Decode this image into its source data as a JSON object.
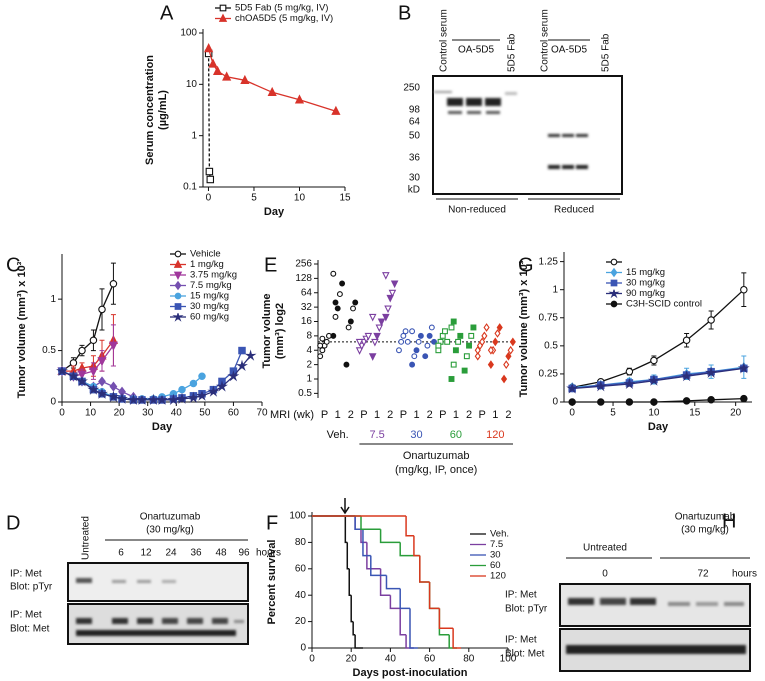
{
  "panel_labels": [
    "A",
    "B",
    "C",
    "D",
    "E",
    "F",
    "G",
    "H"
  ],
  "chart_data": [
    {
      "type": "line",
      "log_y": true,
      "x_label": "Day",
      "y_label": [
        "Serum concentration",
        "(µg/mL)"
      ],
      "xlim": [
        -0.6,
        15
      ],
      "xticks": [
        0,
        5,
        10,
        15
      ],
      "ylim": [
        0.1,
        100
      ],
      "yticks": [
        0.1,
        1,
        10,
        100
      ],
      "series": [
        {
          "name": "5D5 Fab (5 mg/kg, IV)",
          "color": "#111111",
          "marker": "square",
          "open": true,
          "dashed": true,
          "x": [
            0.02,
            0.1,
            0.2
          ],
          "values": [
            40,
            0.2,
            0.14
          ]
        },
        {
          "name": "chOA5D5 (5 mg/kg, IV)",
          "color": "#d8332a",
          "marker": "triangle",
          "open": false,
          "dashed": false,
          "x": [
            0.02,
            0.5,
            1,
            2,
            4,
            7,
            10,
            14
          ],
          "values": [
            50,
            25,
            18,
            14,
            12,
            7,
            5,
            3
          ]
        }
      ]
    },
    {
      "type": "line",
      "x_label": "Day",
      "y_label": [
        "Tumor volume (mm³) x 10³"
      ],
      "xlim": [
        0,
        70
      ],
      "xticks": [
        0,
        10,
        20,
        30,
        40,
        50,
        60,
        70
      ],
      "ylim": [
        0,
        1.4
      ],
      "yticks": [
        0,
        0.5,
        1
      ],
      "series": [
        {
          "name": "Vehicle",
          "color": "#111111",
          "marker": "circle",
          "open": true,
          "x": [
            0,
            4,
            7,
            11,
            14,
            18
          ],
          "values": [
            0.3,
            0.38,
            0.5,
            0.6,
            0.9,
            1.15
          ],
          "errors": [
            0.02,
            0.05,
            0.05,
            0.1,
            0.2,
            0.2
          ]
        },
        {
          "name": "1 mg/kg",
          "color": "#d8332a",
          "marker": "triangle",
          "open": false,
          "x": [
            0,
            4,
            7,
            11,
            14,
            18
          ],
          "values": [
            0.3,
            0.3,
            0.33,
            0.35,
            0.45,
            0.6
          ],
          "errors": [
            0.02,
            0.05,
            0.05,
            0.1,
            0.15,
            0.25
          ]
        },
        {
          "name": "3.75 mg/kg",
          "color": "#a0379c",
          "marker": "triangle-down",
          "open": false,
          "x": [
            0,
            4,
            7,
            11,
            14,
            18
          ],
          "values": [
            0.3,
            0.25,
            0.27,
            0.3,
            0.4,
            0.55
          ],
          "errors": [
            0.02,
            0.03,
            0.05,
            0.08,
            0.1,
            0.2
          ]
        },
        {
          "name": "7.5 mg/kg",
          "color": "#7550b0",
          "marker": "diamond",
          "open": false,
          "x": [
            0,
            4,
            7,
            11,
            14,
            18,
            21,
            25
          ],
          "values": [
            0.3,
            0.25,
            0.2,
            0.15,
            0.2,
            0.15,
            0.1,
            0.05
          ]
        },
        {
          "name": "15 mg/kg",
          "color": "#4aa3df",
          "marker": "circle",
          "open": false,
          "x": [
            0,
            4,
            7,
            11,
            14,
            18,
            21,
            25,
            28,
            32,
            35,
            39,
            42,
            46,
            49
          ],
          "values": [
            0.3,
            0.25,
            0.2,
            0.15,
            0.1,
            0.05,
            0.03,
            0.03,
            0.03,
            0.03,
            0.05,
            0.08,
            0.12,
            0.18,
            0.25
          ]
        },
        {
          "name": "30 mg/kg",
          "color": "#3a55b4",
          "marker": "square",
          "open": false,
          "x": [
            0,
            4,
            7,
            11,
            14,
            18,
            21,
            25,
            28,
            32,
            35,
            39,
            42,
            46,
            49,
            53,
            56,
            60,
            63
          ],
          "values": [
            0.3,
            0.25,
            0.2,
            0.12,
            0.08,
            0.05,
            0.03,
            0.02,
            0.02,
            0.02,
            0.02,
            0.03,
            0.04,
            0.06,
            0.08,
            0.12,
            0.2,
            0.3,
            0.5
          ]
        },
        {
          "name": "60 mg/kg",
          "color": "#2b2f7a",
          "marker": "star",
          "open": false,
          "x": [
            0,
            4,
            7,
            11,
            14,
            18,
            21,
            25,
            28,
            32,
            35,
            39,
            42,
            46,
            49,
            53,
            56,
            60,
            63,
            66
          ],
          "values": [
            0.3,
            0.25,
            0.2,
            0.12,
            0.08,
            0.05,
            0.03,
            0.02,
            0.02,
            0.02,
            0.02,
            0.02,
            0.03,
            0.04,
            0.06,
            0.1,
            0.15,
            0.25,
            0.35,
            0.45
          ]
        }
      ]
    },
    {
      "type": "strip",
      "log_y": true,
      "x_label": "MRI (wk)",
      "y_label": [
        "Tumor volume",
        "(mm³) log2"
      ],
      "group_title": "Onartuzumab",
      "group_subtitle": "(mg/kg, IP, once)",
      "categories": [
        "P",
        "1",
        "2",
        "P",
        "1",
        "2",
        "P",
        "1",
        "2",
        "P",
        "1",
        "2",
        "P",
        "1",
        "2"
      ],
      "ylim": [
        0.4,
        256
      ],
      "yticks": [
        0.5,
        1,
        2,
        4,
        8,
        16,
        32,
        64,
        128,
        256
      ],
      "reference_line": 6,
      "series": [
        {
          "name": "Veh.",
          "color": "#111111",
          "marker": "circle",
          "values": [
            [
              3,
              4,
              5,
              6,
              8,
              5,
              7
            ],
            [
              8,
              20,
              30,
              60,
              100,
              160,
              40
            ],
            [
              2,
              12,
              16,
              30,
              40
            ]
          ]
        },
        {
          "name": "7.5",
          "color": "#7b3fa0",
          "marker": "triangle-down",
          "values": [
            [
              4,
              5,
              6,
              7,
              8,
              6
            ],
            [
              3,
              6,
              8,
              12,
              16,
              20
            ],
            [
              20,
              30,
              50,
              64,
              100,
              150
            ]
          ]
        },
        {
          "name": "30",
          "color": "#3a55b4",
          "marker": "circle",
          "values": [
            [
              4,
              6,
              8,
              10,
              6
            ],
            [
              2,
              3,
              4,
              6,
              8,
              10
            ],
            [
              3,
              5,
              8,
              12,
              6
            ]
          ]
        },
        {
          "name": "60",
          "color": "#2a9d3a",
          "marker": "square",
          "values": [
            [
              4,
              6,
              8,
              10,
              6,
              5
            ],
            [
              1,
              2,
              4,
              6,
              8,
              12,
              16
            ],
            [
              1.5,
              3,
              5,
              8,
              12
            ]
          ]
        },
        {
          "name": "120",
          "color": "#d9381e",
          "marker": "diamond",
          "values": [
            [
              3,
              5,
              6,
              8,
              12,
              4
            ],
            [
              2,
              4,
              6,
              9,
              12,
              4
            ],
            [
              1,
              2,
              3,
              4,
              6
            ]
          ]
        }
      ]
    },
    {
      "type": "step",
      "x_label": "Days post-inoculation",
      "y_label": [
        "Percent survival"
      ],
      "xlim": [
        0,
        100
      ],
      "xticks": [
        0,
        20,
        40,
        60,
        80,
        100
      ],
      "ylim": [
        0,
        100
      ],
      "yticks": [
        0,
        20,
        40,
        60,
        80,
        100
      ],
      "series": [
        {
          "name": "Veh.",
          "color": "#111111",
          "x": [
            0,
            16,
            17,
            18,
            19,
            20,
            21,
            22
          ],
          "values": [
            100,
            100,
            80,
            60,
            40,
            20,
            10,
            0
          ]
        },
        {
          "name": "7.5",
          "color": "#7b3fa0",
          "x": [
            0,
            22,
            25,
            28,
            35,
            40,
            45,
            48
          ],
          "values": [
            100,
            90,
            80,
            60,
            40,
            30,
            10,
            0
          ]
        },
        {
          "name": "30",
          "color": "#3a55b4",
          "x": [
            0,
            22,
            26,
            30,
            38,
            45,
            50
          ],
          "values": [
            100,
            90,
            70,
            55,
            45,
            30,
            0
          ]
        },
        {
          "name": "60",
          "color": "#2a9d3a",
          "x": [
            0,
            25,
            35,
            45,
            55,
            60,
            65,
            70
          ],
          "values": [
            100,
            90,
            80,
            70,
            50,
            30,
            10,
            0
          ]
        },
        {
          "name": "120",
          "color": "#d9381e",
          "x": [
            0,
            48,
            52,
            55,
            60,
            65,
            72
          ],
          "values": [
            100,
            85,
            70,
            50,
            30,
            15,
            0
          ]
        }
      ]
    },
    {
      "type": "line",
      "x_label": "Day",
      "y_label": [
        "Tumor volume (mm³) x 10³"
      ],
      "xlim": [
        -1,
        22
      ],
      "xticks": [
        0,
        5,
        10,
        15,
        20
      ],
      "ylim": [
        0,
        1.3
      ],
      "yticks": [
        0,
        0.25,
        0.5,
        0.75,
        1,
        1.25
      ],
      "series": [
        {
          "color": "#111111",
          "marker": "circle",
          "open": true,
          "x": [
            0,
            3.5,
            7,
            10,
            14,
            17,
            21
          ],
          "values": [
            0.13,
            0.18,
            0.27,
            0.37,
            0.55,
            0.73,
            1.0
          ],
          "errors": [
            0.02,
            0.02,
            0.03,
            0.04,
            0.06,
            0.08,
            0.15
          ]
        },
        {
          "name": "15 mg/kg",
          "color": "#4aa3df",
          "marker": "diamond",
          "open": false,
          "x": [
            0,
            3.5,
            7,
            10,
            14,
            17,
            21
          ],
          "values": [
            0.13,
            0.15,
            0.18,
            0.2,
            0.25,
            0.27,
            0.31
          ],
          "errors": [
            0.02,
            0.03,
            0.03,
            0.04,
            0.05,
            0.06,
            0.1
          ]
        },
        {
          "name": "30 mg/kg",
          "color": "#3a55b4",
          "marker": "square",
          "open": false,
          "x": [
            0,
            3.5,
            7,
            10,
            14,
            17,
            21
          ],
          "values": [
            0.12,
            0.15,
            0.17,
            0.2,
            0.24,
            0.27,
            0.3
          ]
        },
        {
          "name": "90 mg/kg",
          "color": "#2b2f7a",
          "marker": "star",
          "open": false,
          "x": [
            0,
            3.5,
            7,
            10,
            14,
            17,
            21
          ],
          "values": [
            0.12,
            0.14,
            0.16,
            0.19,
            0.23,
            0.26,
            0.3
          ]
        },
        {
          "name": "C3H-SCID control",
          "color": "#111111",
          "marker": "circle",
          "open": false,
          "x": [
            0,
            3.5,
            7,
            10,
            14,
            17,
            21
          ],
          "values": [
            0,
            0,
            0,
            0,
            0.01,
            0.02,
            0.03
          ]
        }
      ]
    }
  ],
  "blot_b": {
    "lanes": [
      "Control serum",
      "OA-5D5",
      "5D5 Fab",
      "Control serum",
      "OA-5D5",
      "5D5 Fab"
    ],
    "markers": [
      "250",
      "98",
      "64",
      "50",
      "36",
      "30",
      "kD"
    ],
    "conditions": [
      "Non-reduced",
      "Reduced"
    ]
  },
  "blot_d": {
    "control": "Untreated",
    "treatment": "Onartuzumab",
    "dose": "(30 mg/kg)",
    "times": [
      "6",
      "12",
      "24",
      "36",
      "48",
      "96"
    ],
    "unit": "hours",
    "rows": [
      [
        "IP: Met",
        "Blot: pTyr"
      ],
      [
        "IP: Met",
        "Blot: Met"
      ]
    ]
  },
  "blot_h": {
    "control": "Untreated",
    "treatment": "Onartuzumab",
    "dose": "(30 mg/kg)",
    "times": [
      "0",
      "72"
    ],
    "unit": "hours",
    "rows": [
      [
        "IP: Met",
        "Blot: pTyr"
      ],
      [
        "IP: Met",
        "Blot: Met"
      ]
    ]
  }
}
